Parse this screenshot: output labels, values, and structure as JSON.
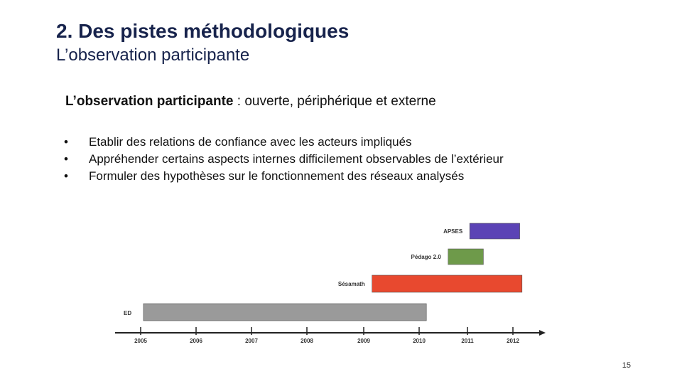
{
  "slide": {
    "title": "2. Des pistes méthodologiques",
    "subtitle": "L’observation participante",
    "lead_bold": "L’observation participante",
    "lead_rest": " : ouverte, périphérique et externe",
    "bullet_char": "•",
    "bullets": [
      "Etablir des relations de confiance avec les acteurs impliqués",
      "Appréhender certains aspects internes difficilement observables de l’extérieur",
      "Formuler des hypothèses sur le fonctionnement des réseaux analysés"
    ],
    "page_number": "15"
  },
  "chart_data": {
    "type": "bar",
    "orientation": "horizontal-timeline",
    "ticks": [
      "2005",
      "2006",
      "2007",
      "2008",
      "2009",
      "2010",
      "2011",
      "2012"
    ],
    "bars": [
      {
        "label": "APSES",
        "start": 2011.05,
        "end": 2012.15,
        "color": "#5b43b5"
      },
      {
        "label": "Pédago 2.0",
        "start": 2010.6,
        "end": 2011.35,
        "color": "#6e9a4a"
      },
      {
        "label": "Sésamath",
        "start": 2009.15,
        "end": 2012.2,
        "color": "#e8492f"
      },
      {
        "label": "ED",
        "start": 2005.05,
        "end": 2010.15,
        "color": "#9a9a9a"
      }
    ],
    "xlim": [
      2004.6,
      2012.6
    ],
    "grid": false
  }
}
